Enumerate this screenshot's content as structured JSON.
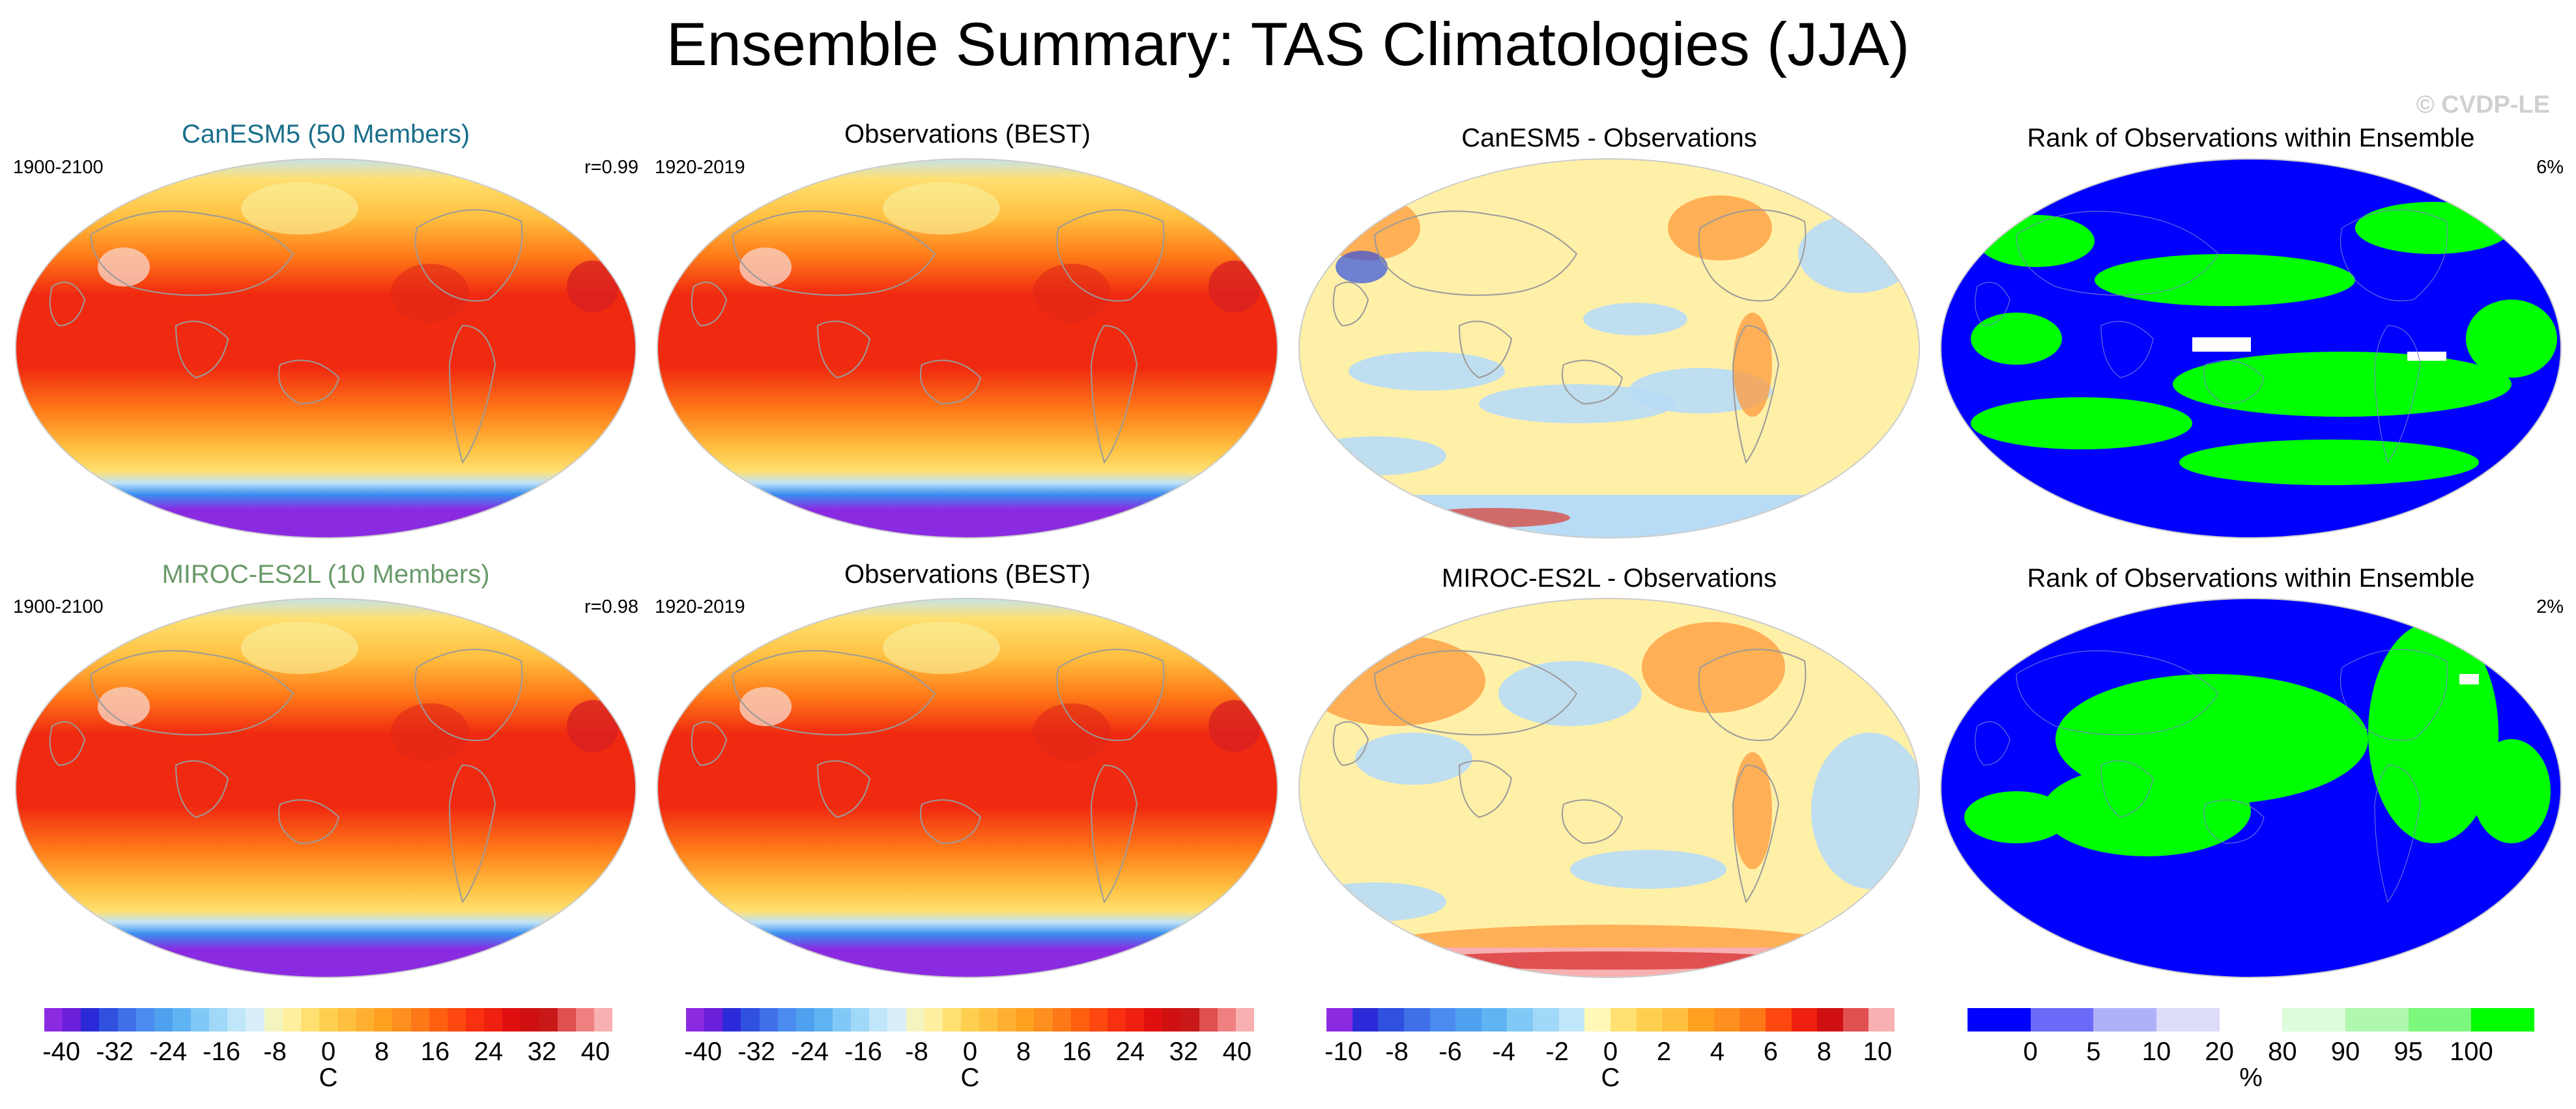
{
  "title": "Ensemble Summary: TAS Climatologies (JJA)",
  "watermark": "© CVDP-LE",
  "rows": [
    {
      "model_title": "CanESM5 (50 Members)",
      "model_title_color": "#1a6e8a",
      "model_years": "1900-2100",
      "model_corr": "r=0.99",
      "obs_title": "Observations (BEST)",
      "obs_years": "1920-2019",
      "diff_title": "CanESM5 - Observations",
      "rank_title": "Rank of Observations within Ensemble",
      "rank_pct": "6%"
    },
    {
      "model_title": "MIROC-ES2L (10 Members)",
      "model_title_color": "#6a9a6a",
      "model_years": "1900-2100",
      "model_corr": "r=0.98",
      "obs_title": "Observations (BEST)",
      "obs_years": "1920-2019",
      "diff_title": "MIROC-ES2L - Observations",
      "rank_title": "Rank of Observations within Ensemble",
      "rank_pct": "2%"
    }
  ],
  "colorbars": [
    {
      "unit": "C",
      "labels": [
        "-40",
        "-32",
        "-24",
        "-16",
        "-8",
        "0",
        "8",
        "16",
        "24",
        "32",
        "40"
      ],
      "colors": [
        "#8a2be2",
        "#6a1fd8",
        "#2a2ad8",
        "#3050e0",
        "#4070e8",
        "#4a8cf0",
        "#50a0f0",
        "#60b4f4",
        "#80c8f6",
        "#a0d8f8",
        "#c0e6fa",
        "#d8eefa",
        "#f4f4c0",
        "#fff0a0",
        "#ffe070",
        "#ffd050",
        "#ffc040",
        "#ffb030",
        "#ffa020",
        "#ff9020",
        "#ff7818",
        "#ff6010",
        "#ff4810",
        "#f83010",
        "#f02010",
        "#e01010",
        "#d01010",
        "#c81818",
        "#e05050",
        "#f08080",
        "#f8b0b0"
      ]
    },
    {
      "unit": "C",
      "labels": [
        "-40",
        "-32",
        "-24",
        "-16",
        "-8",
        "0",
        "8",
        "16",
        "24",
        "32",
        "40"
      ],
      "colors": [
        "#8a2be2",
        "#6a1fd8",
        "#2a2ad8",
        "#3050e0",
        "#4070e8",
        "#4a8cf0",
        "#50a0f0",
        "#60b4f4",
        "#80c8f6",
        "#a0d8f8",
        "#c0e6fa",
        "#d8eefa",
        "#f4f4c0",
        "#fff0a0",
        "#ffe070",
        "#ffd050",
        "#ffc040",
        "#ffb030",
        "#ffa020",
        "#ff9020",
        "#ff7818",
        "#ff6010",
        "#ff4810",
        "#f83010",
        "#f02010",
        "#e01010",
        "#d01010",
        "#c81818",
        "#e05050",
        "#f08080",
        "#f8b0b0"
      ]
    },
    {
      "unit": "C",
      "labels": [
        "-10",
        "-8",
        "-6",
        "-4",
        "-2",
        "0",
        "2",
        "4",
        "6",
        "8",
        "10"
      ],
      "colors": [
        "#8a2be2",
        "#2a2ad8",
        "#3050e0",
        "#4070e8",
        "#4a8cf0",
        "#50a0f0",
        "#60b4f4",
        "#80c8f6",
        "#a0d8f8",
        "#c0e6fa",
        "#fff8b8",
        "#ffe070",
        "#ffd050",
        "#ffc040",
        "#ffa020",
        "#ff9020",
        "#ff7818",
        "#ff4810",
        "#f02010",
        "#d01010",
        "#e05050",
        "#f8b0b0"
      ]
    },
    {
      "unit": "%",
      "labels": [
        "0",
        "5",
        "10",
        "20",
        "80",
        "90",
        "95",
        "100"
      ],
      "colors": [
        "#0000ff",
        "#6a6af8",
        "#b0b0f8",
        "#dcdcf8",
        "#ffffff",
        "#dcfcdc",
        "#b0f8b0",
        "#7cf87c",
        "#00ff00"
      ]
    }
  ],
  "map_colors": {
    "warm_core": "#f02a10",
    "warm_mid": "#ff7a18",
    "warm_outer": "#ffc040",
    "antarctic_ring": "#3a8ef0",
    "antarctic_core": "#8a2be2",
    "land_line": "#9a9a9a",
    "diff_base": "#fff0a8",
    "diff_cool": "#b8dcf6",
    "diff_warm": "#ff9a3a",
    "rank_low": "#0000ff",
    "rank_high": "#00ff00"
  }
}
